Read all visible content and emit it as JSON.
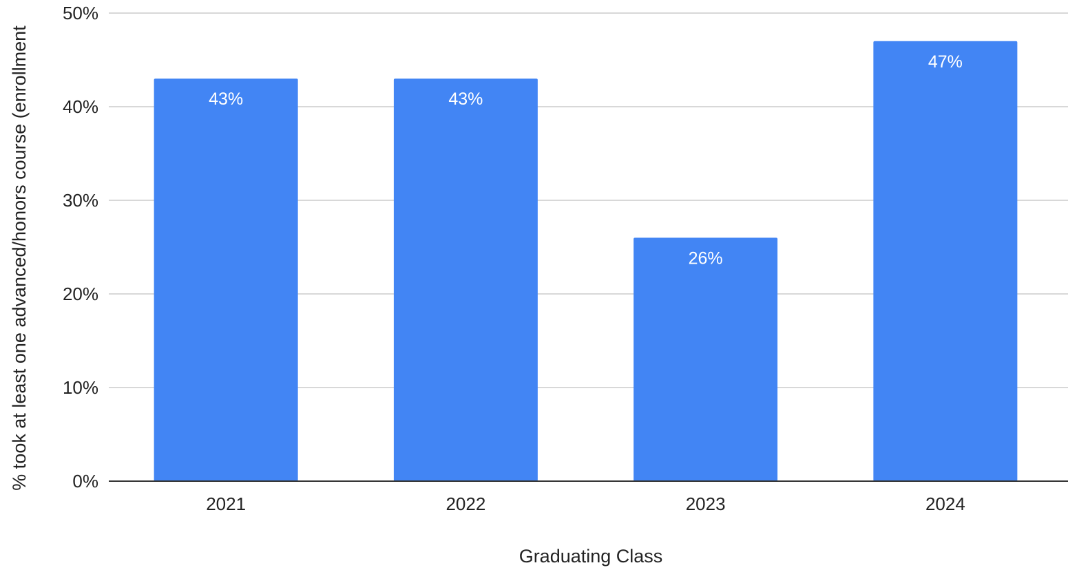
{
  "chart_data": {
    "type": "bar",
    "title": "",
    "xlabel": "Graduating Class",
    "ylabel": "% took at least one advanced/honors course (enrollment",
    "categories": [
      "2021",
      "2022",
      "2023",
      "2024"
    ],
    "values": [
      43,
      43,
      26,
      47
    ],
    "data_labels": [
      "43%",
      "43%",
      "26%",
      "47%"
    ],
    "ylim": [
      0,
      50
    ],
    "yticks": [
      0,
      10,
      20,
      30,
      40,
      50
    ],
    "ytick_labels": [
      "0%",
      "10%",
      "20%",
      "30%",
      "40%",
      "50%"
    ],
    "grid": true,
    "legend": "none",
    "colors": {
      "bar": "#4285f4",
      "grid": "#cccccc",
      "axis": "#333333",
      "text": "#222222",
      "data_label": "#ffffff"
    }
  }
}
